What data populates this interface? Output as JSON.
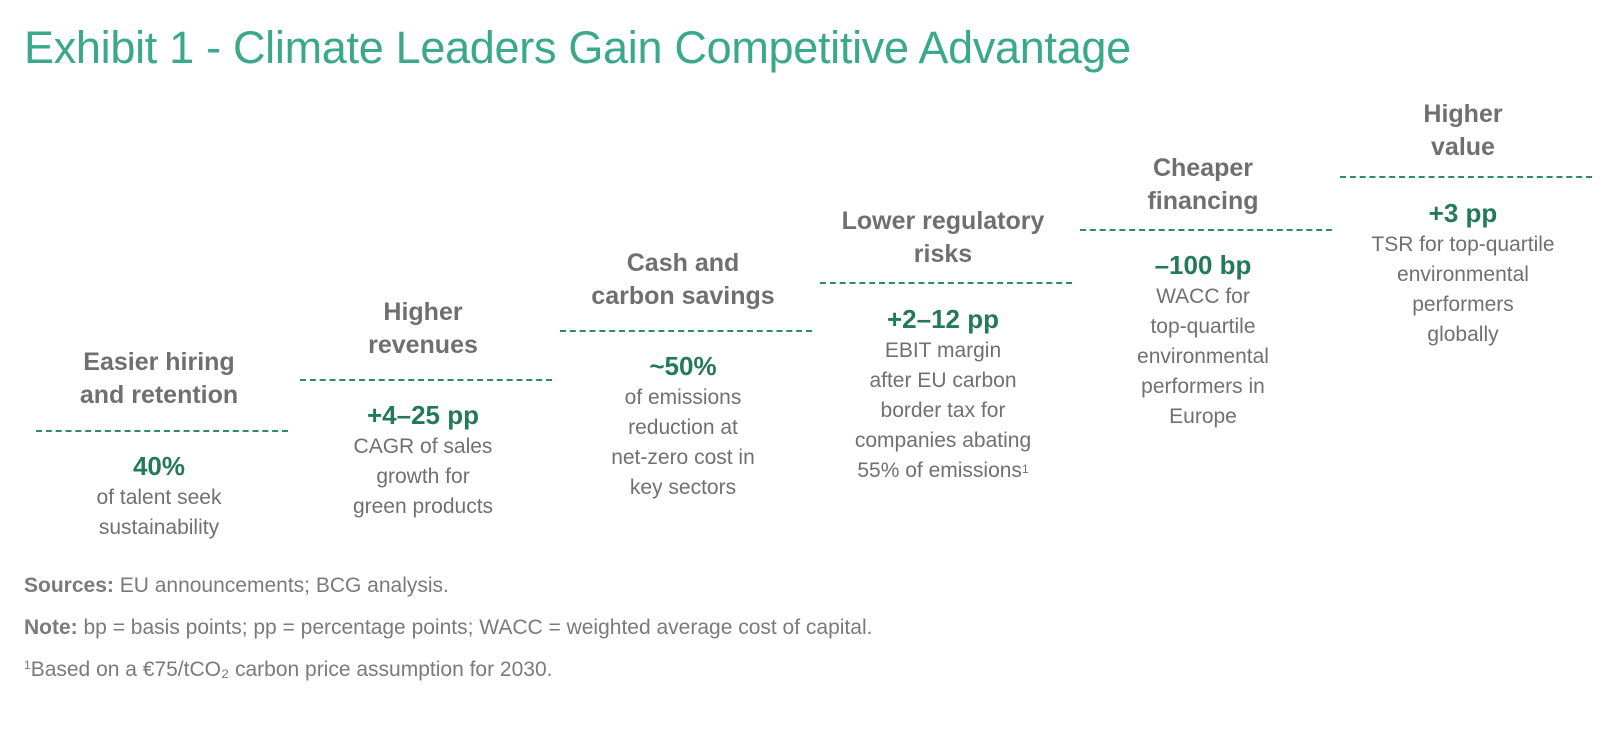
{
  "title": "Exhibit 1 - Climate Leaders Gain Competitive Advantage",
  "steps": [
    {
      "heading": "Easier hiring\nand retention",
      "value": "40%",
      "description": "of talent seek\nsustainability",
      "footnote": ""
    },
    {
      "heading": "Higher\nrevenues",
      "value": "+4–25 pp",
      "description": "CAGR of sales\ngrowth for\ngreen products",
      "footnote": ""
    },
    {
      "heading": "Cash and\ncarbon savings",
      "value": "~50%",
      "description": "of emissions\nreduction at\nnet-zero cost in\nkey sectors",
      "footnote": ""
    },
    {
      "heading": "Lower regulatory\nrisks",
      "value": "+2–12 pp",
      "description": "EBIT margin\nafter EU carbon\nborder tax for\ncompanies abating\n55% of emissions",
      "footnote": "1"
    },
    {
      "heading": "Cheaper\nfinancing",
      "value": "–100 bp",
      "description": "WACC for\ntop-quartile\nenvironmental\nperformers in\nEurope",
      "footnote": ""
    },
    {
      "heading": "Higher\nvalue",
      "value": "+3 pp",
      "description": "TSR for top-quartile\nenvironmental\nperformers\nglobally",
      "footnote": ""
    }
  ],
  "notes": {
    "sources_label": "Sources:",
    "sources_text": " EU announcements; BCG analysis.",
    "note_label": "Note:",
    "note_text": " bp = basis points; pp = percentage points; WACC = weighted average cost of capital.",
    "footnote_mark": "1",
    "footnote_text": "Based on a €75/tCO₂ carbon price assumption for 2030."
  },
  "colors": {
    "title": "#3aa88a",
    "value": "#227a58",
    "dashed_line": "#2e8a67",
    "heading": "#6f6f6f",
    "body_text": "#707070"
  }
}
